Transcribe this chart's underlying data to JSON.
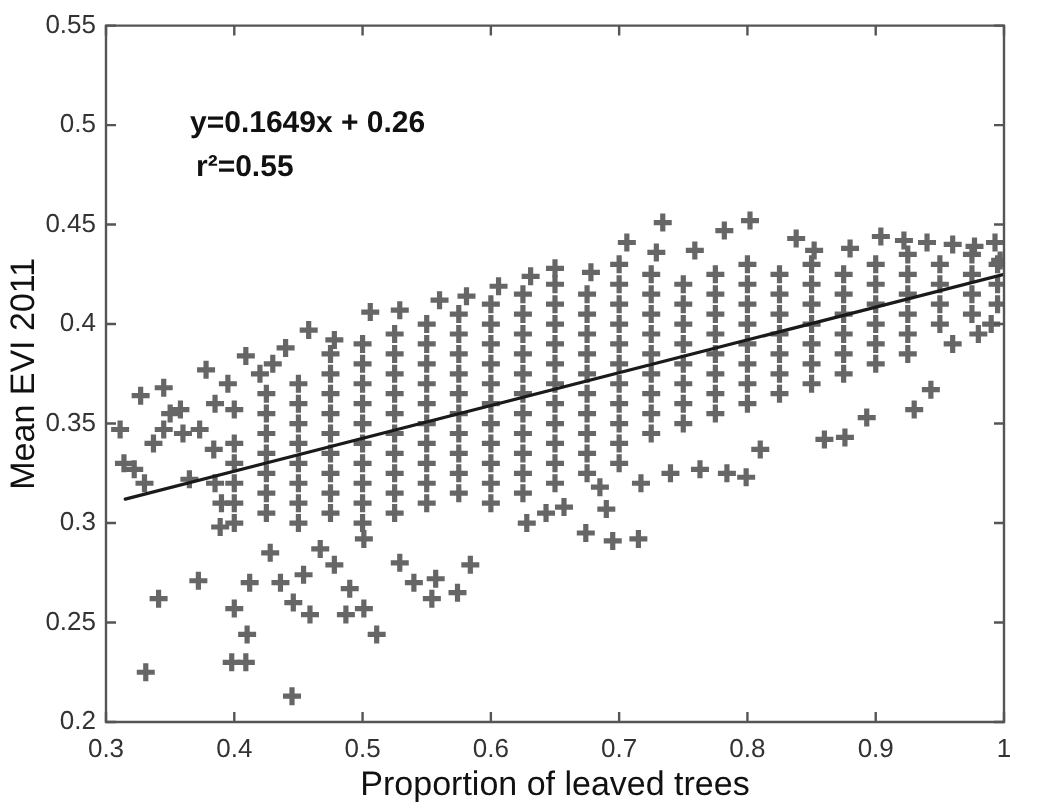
{
  "chart_data": {
    "type": "scatter",
    "xlabel": "Proportion of leaved trees",
    "ylabel": "Mean EVI 2011",
    "annotations": [
      "y=0.1649x + 0.26",
      "r²=0.55"
    ],
    "xlim": [
      0.3,
      1
    ],
    "xticks": [
      0.3,
      0.4,
      0.5,
      0.6,
      0.7,
      0.8,
      0.9,
      1
    ],
    "ylim": [
      0.2,
      0.55
    ],
    "yticks": [
      0.2,
      0.25,
      0.3,
      0.35,
      0.4,
      0.45,
      0.5,
      0.55
    ],
    "marker": "cross",
    "series": [
      {
        "type": "scatter",
        "color": "#666666",
        "x": [
          0.4,
          0.4,
          0.4,
          0.4,
          0.4,
          0.425,
          0.425,
          0.425,
          0.425,
          0.425,
          0.425,
          0.425,
          0.45,
          0.45,
          0.45,
          0.45,
          0.45,
          0.45,
          0.45,
          0.45,
          0.475,
          0.475,
          0.475,
          0.475,
          0.475,
          0.475,
          0.475,
          0.475,
          0.475,
          0.5,
          0.5,
          0.5,
          0.5,
          0.5,
          0.5,
          0.5,
          0.5,
          0.5,
          0.5,
          0.525,
          0.525,
          0.525,
          0.525,
          0.525,
          0.525,
          0.525,
          0.525,
          0.525,
          0.525,
          0.55,
          0.55,
          0.55,
          0.55,
          0.55,
          0.55,
          0.55,
          0.55,
          0.55,
          0.55,
          0.575,
          0.575,
          0.575,
          0.575,
          0.575,
          0.575,
          0.575,
          0.575,
          0.575,
          0.575,
          0.6,
          0.6,
          0.6,
          0.6,
          0.6,
          0.6,
          0.6,
          0.6,
          0.6,
          0.6,
          0.6,
          0.625,
          0.625,
          0.625,
          0.625,
          0.625,
          0.625,
          0.625,
          0.625,
          0.625,
          0.625,
          0.625,
          0.65,
          0.65,
          0.65,
          0.65,
          0.65,
          0.65,
          0.65,
          0.65,
          0.65,
          0.65,
          0.65,
          0.675,
          0.675,
          0.675,
          0.675,
          0.675,
          0.675,
          0.675,
          0.675,
          0.675,
          0.675,
          0.7,
          0.7,
          0.7,
          0.7,
          0.7,
          0.7,
          0.7,
          0.7,
          0.7,
          0.7,
          0.725,
          0.725,
          0.725,
          0.725,
          0.725,
          0.725,
          0.725,
          0.725,
          0.725,
          0.75,
          0.75,
          0.75,
          0.75,
          0.75,
          0.75,
          0.75,
          0.75,
          0.775,
          0.775,
          0.775,
          0.775,
          0.775,
          0.775,
          0.775,
          0.775,
          0.8,
          0.8,
          0.8,
          0.8,
          0.8,
          0.8,
          0.8,
          0.8,
          0.825,
          0.825,
          0.825,
          0.825,
          0.825,
          0.825,
          0.825,
          0.85,
          0.85,
          0.85,
          0.85,
          0.85,
          0.85,
          0.85,
          0.875,
          0.875,
          0.875,
          0.875,
          0.875,
          0.875,
          0.9,
          0.9,
          0.9,
          0.9,
          0.9,
          0.9,
          0.925,
          0.925,
          0.925,
          0.925,
          0.925,
          0.925,
          0.95,
          0.95,
          0.95,
          0.95,
          0.975,
          0.975,
          0.975,
          0.975,
          0.995,
          0.995,
          0.995,
          0.331,
          0.341,
          0.372,
          0.4,
          0.398,
          0.409,
          0.41,
          0.445,
          0.511,
          0.574,
          0.459,
          0.487,
          0.501,
          0.412,
          0.436,
          0.454,
          0.478,
          0.49,
          0.446,
          0.428,
          0.467,
          0.501,
          0.529,
          0.54,
          0.557,
          0.584,
          0.554,
          0.314,
          0.322,
          0.311,
          0.345,
          0.358,
          0.384,
          0.373,
          0.4,
          0.33,
          0.337,
          0.389,
          0.327,
          0.345,
          0.378,
          0.409,
          0.458,
          0.44,
          0.478,
          0.506,
          0.529,
          0.56,
          0.581,
          0.606,
          0.36,
          0.35,
          0.385,
          0.395,
          0.42,
          0.43,
          0.385,
          0.39,
          0.365,
          0.734,
          0.706,
          0.782,
          0.802,
          0.838,
          0.904,
          0.922,
          0.94,
          0.993,
          0.678,
          0.631,
          0.729,
          0.759,
          0.852,
          0.977,
          0.997,
          0.65,
          0.7,
          0.88,
          0.96,
          0.943,
          0.93,
          0.893,
          0.876,
          0.86,
          0.799,
          0.784,
          0.763,
          0.74,
          0.717,
          0.685,
          0.69,
          0.674,
          0.695,
          0.715,
          0.657,
          0.643,
          0.628,
          0.81,
          0.96,
          0.98,
          0.99
        ],
        "values": [
          0.3,
          0.31,
          0.32,
          0.33,
          0.34,
          0.305,
          0.315,
          0.325,
          0.335,
          0.345,
          0.355,
          0.365,
          0.3,
          0.31,
          0.32,
          0.33,
          0.34,
          0.35,
          0.36,
          0.37,
          0.305,
          0.315,
          0.325,
          0.335,
          0.345,
          0.355,
          0.365,
          0.375,
          0.385,
          0.3,
          0.31,
          0.32,
          0.33,
          0.34,
          0.35,
          0.36,
          0.37,
          0.38,
          0.39,
          0.305,
          0.315,
          0.325,
          0.335,
          0.345,
          0.355,
          0.365,
          0.375,
          0.385,
          0.395,
          0.31,
          0.32,
          0.33,
          0.34,
          0.35,
          0.36,
          0.37,
          0.38,
          0.39,
          0.4,
          0.315,
          0.325,
          0.335,
          0.345,
          0.355,
          0.365,
          0.375,
          0.385,
          0.395,
          0.405,
          0.31,
          0.32,
          0.33,
          0.34,
          0.35,
          0.36,
          0.37,
          0.38,
          0.39,
          0.4,
          0.41,
          0.315,
          0.325,
          0.335,
          0.345,
          0.355,
          0.365,
          0.375,
          0.385,
          0.395,
          0.405,
          0.415,
          0.32,
          0.33,
          0.34,
          0.35,
          0.36,
          0.37,
          0.38,
          0.39,
          0.4,
          0.41,
          0.42,
          0.325,
          0.335,
          0.345,
          0.355,
          0.365,
          0.375,
          0.385,
          0.395,
          0.405,
          0.415,
          0.33,
          0.34,
          0.35,
          0.36,
          0.37,
          0.38,
          0.39,
          0.4,
          0.41,
          0.42,
          0.345,
          0.355,
          0.365,
          0.375,
          0.385,
          0.395,
          0.405,
          0.415,
          0.425,
          0.35,
          0.36,
          0.37,
          0.38,
          0.39,
          0.4,
          0.41,
          0.42,
          0.355,
          0.365,
          0.375,
          0.385,
          0.395,
          0.405,
          0.415,
          0.425,
          0.36,
          0.37,
          0.38,
          0.39,
          0.4,
          0.41,
          0.42,
          0.43,
          0.365,
          0.375,
          0.385,
          0.395,
          0.405,
          0.415,
          0.425,
          0.37,
          0.38,
          0.39,
          0.4,
          0.41,
          0.42,
          0.43,
          0.375,
          0.385,
          0.395,
          0.405,
          0.415,
          0.425,
          0.38,
          0.39,
          0.4,
          0.41,
          0.42,
          0.43,
          0.385,
          0.395,
          0.405,
          0.415,
          0.425,
          0.435,
          0.4,
          0.41,
          0.42,
          0.43,
          0.405,
          0.415,
          0.425,
          0.435,
          0.41,
          0.42,
          0.43,
          0.225,
          0.262,
          0.271,
          0.257,
          0.23,
          0.23,
          0.244,
          0.213,
          0.244,
          0.265,
          0.254,
          0.254,
          0.257,
          0.27,
          0.27,
          0.274,
          0.279,
          0.267,
          0.26,
          0.285,
          0.287,
          0.292,
          0.28,
          0.27,
          0.272,
          0.279,
          0.262,
          0.33,
          0.327,
          0.347,
          0.347,
          0.357,
          0.337,
          0.347,
          0.357,
          0.32,
          0.34,
          0.298,
          0.364,
          0.368,
          0.377,
          0.384,
          0.397,
          0.388,
          0.392,
          0.406,
          0.407,
          0.412,
          0.414,
          0.419,
          0.345,
          0.355,
          0.36,
          0.37,
          0.375,
          0.38,
          0.32,
          0.31,
          0.322,
          0.451,
          0.441,
          0.447,
          0.452,
          0.443,
          0.444,
          0.442,
          0.441,
          0.441,
          0.426,
          0.424,
          0.436,
          0.437,
          0.437,
          0.439,
          0.432,
          0.428,
          0.43,
          0.438,
          0.44,
          0.367,
          0.357,
          0.353,
          0.343,
          0.342,
          0.323,
          0.325,
          0.327,
          0.325,
          0.32,
          0.318,
          0.307,
          0.295,
          0.291,
          0.292,
          0.308,
          0.305,
          0.3,
          0.337,
          0.39,
          0.395,
          0.4
        ]
      },
      {
        "type": "line",
        "color": "#1a1a1a",
        "marker": "none",
        "x": [
          0.315,
          1
        ],
        "values": [
          0.312,
          0.425
        ]
      }
    ]
  }
}
